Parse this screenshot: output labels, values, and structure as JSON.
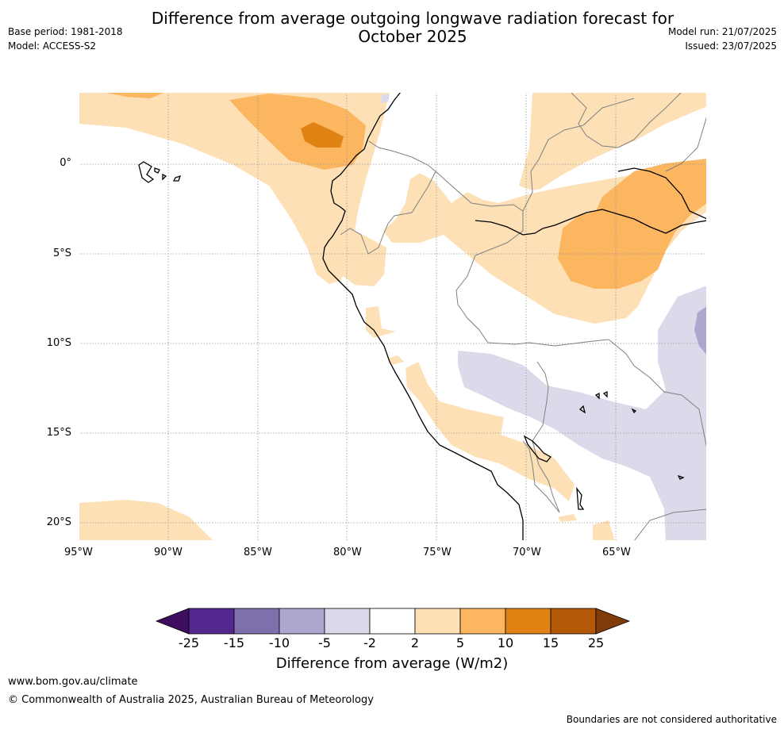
{
  "header": {
    "title_line1": "Difference from average outgoing longwave radiation forecast for",
    "title_line2": "October 2025",
    "base_period": "Base period: 1981-2018",
    "model": "Model: ACCESS-S2",
    "model_run": "Model run: 21/07/2025",
    "issued": "Issued: 23/07/2025"
  },
  "map": {
    "lat_labels": [
      "0°",
      "5°S",
      "10°S",
      "15°S",
      "20°S"
    ],
    "lon_labels": [
      "95°W",
      "90°W",
      "85°W",
      "80°W",
      "75°W",
      "70°W",
      "65°W"
    ]
  },
  "colorbar": {
    "title": "Difference from average (W/m2)",
    "ticks": [
      "-25",
      "-15",
      "-10",
      "-5",
      "-2",
      "2",
      "5",
      "10",
      "15",
      "25"
    ],
    "colors": [
      "#3f0d60",
      "#54278f",
      "#7f6fac",
      "#afa6d0",
      "#dadaeb",
      "#ffffff",
      "#fde0b6",
      "#fbb65f",
      "#e08214",
      "#b35806",
      "#7f3b08"
    ]
  },
  "footer": {
    "website": "www.bom.gov.au/climate",
    "copyright": "© Commonwealth of Australia 2025, Australian Bureau of Meteorology",
    "disclaimer": "Boundaries are not considered authoritative"
  }
}
